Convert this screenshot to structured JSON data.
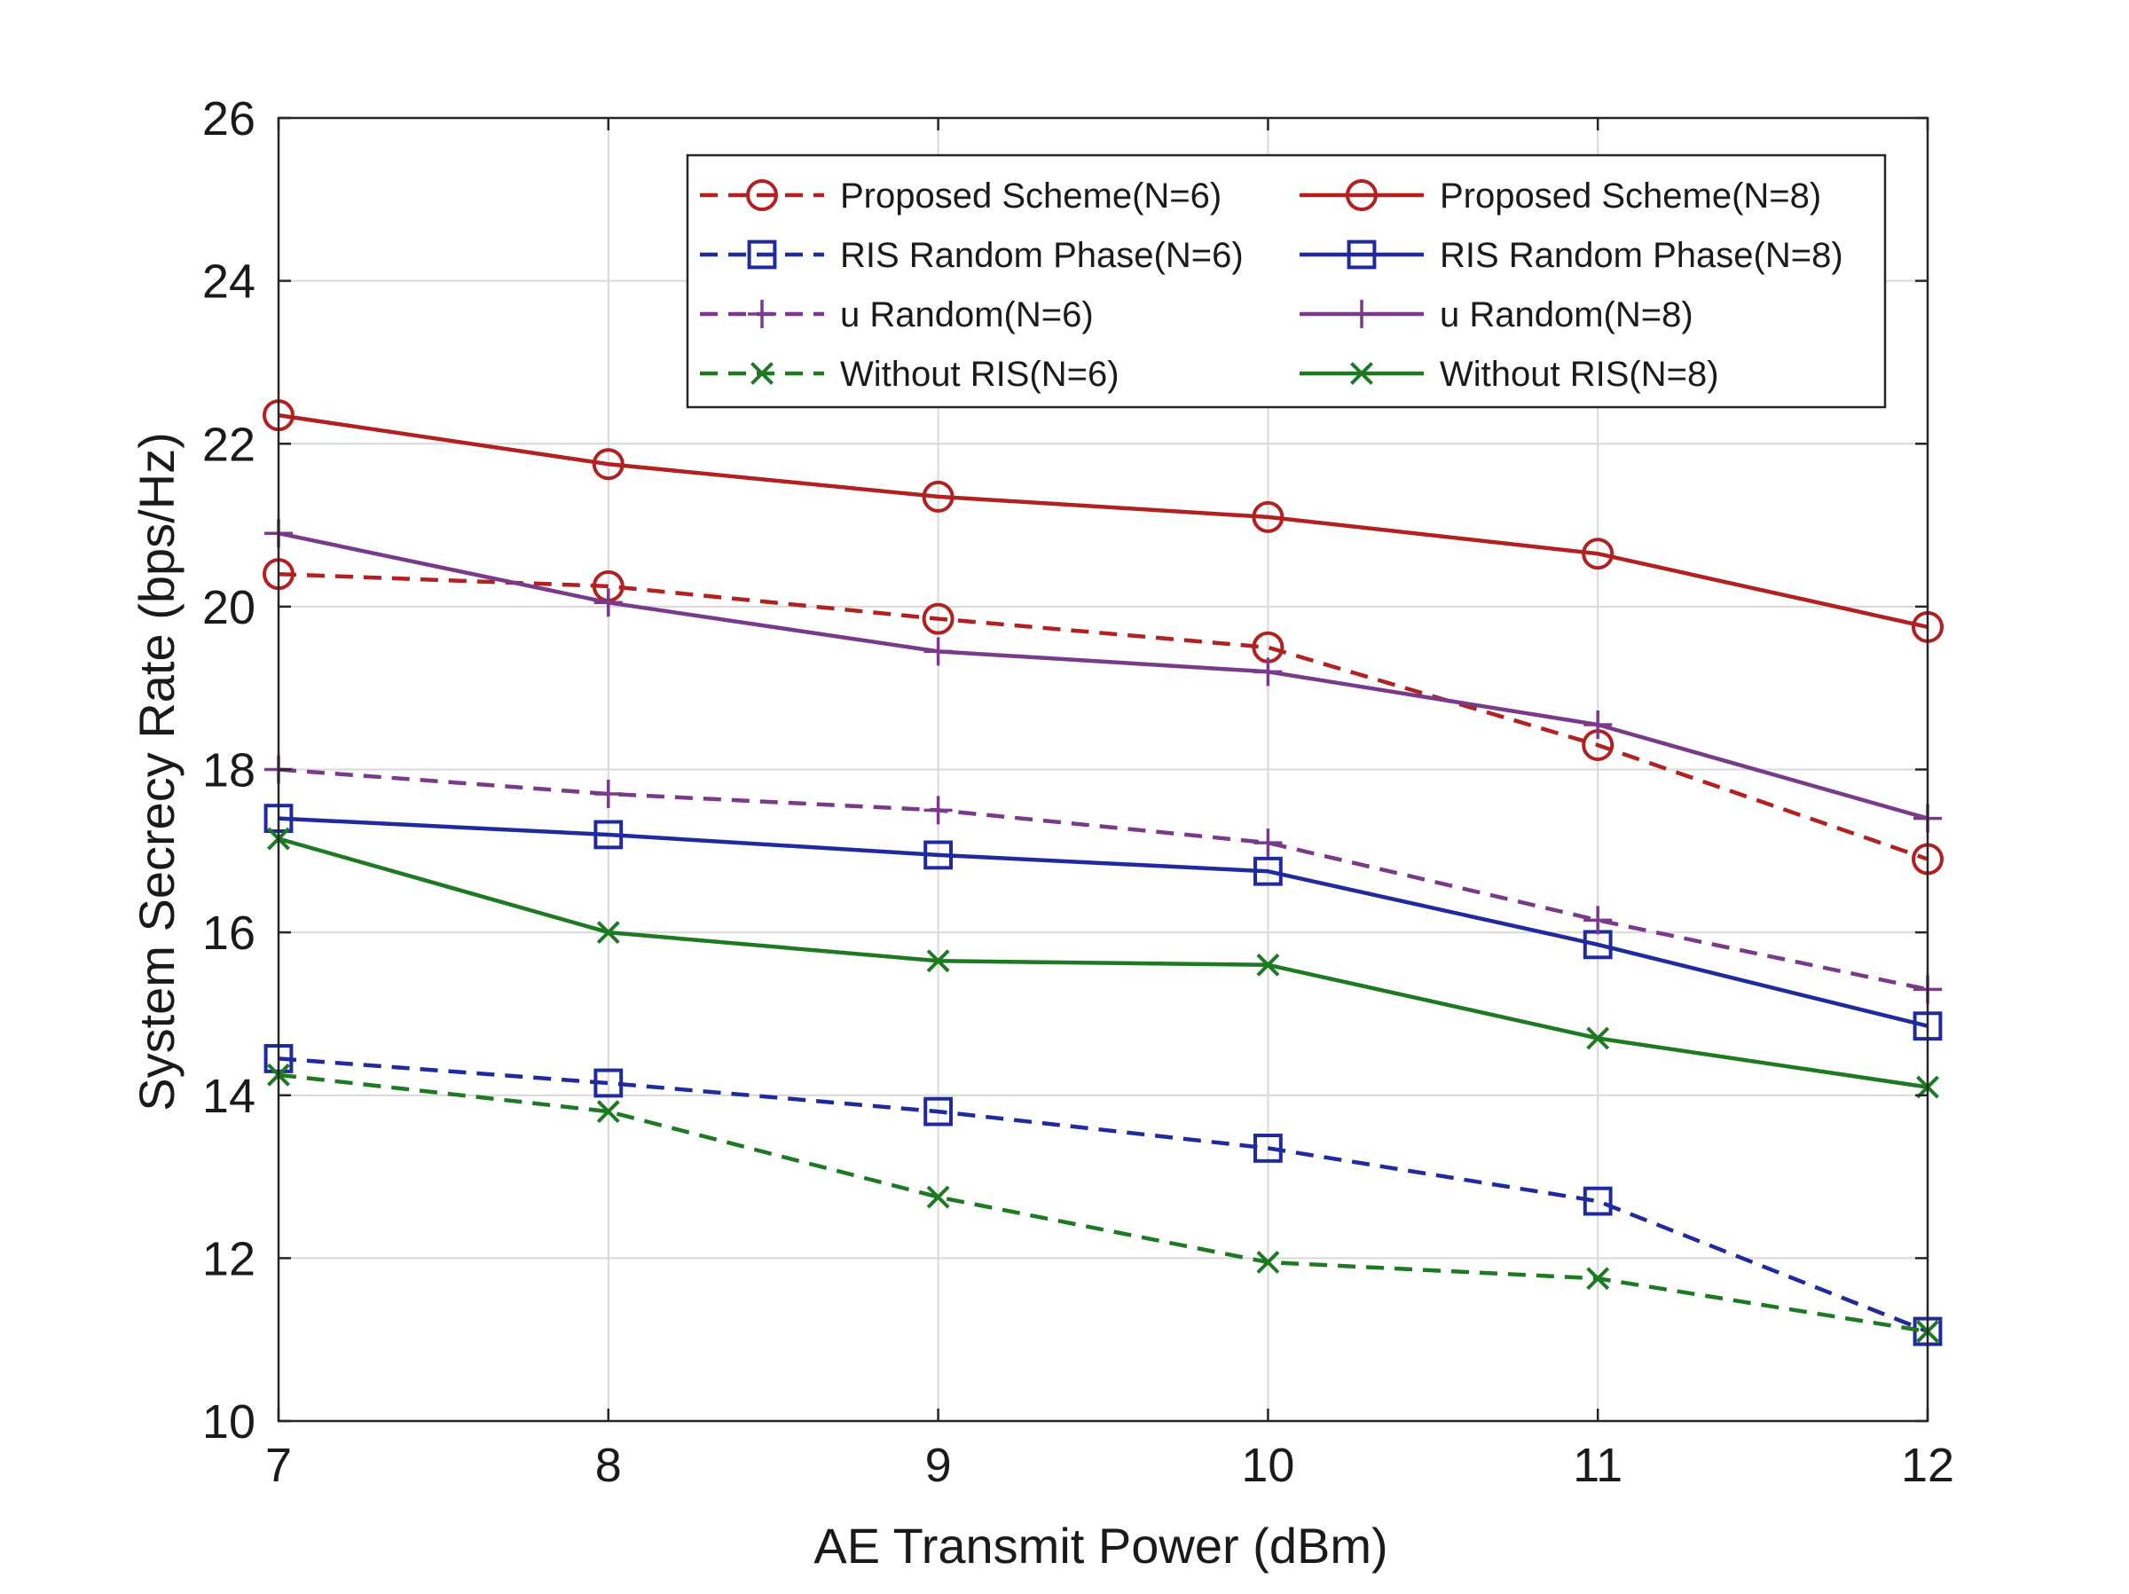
{
  "chart_data": {
    "type": "line",
    "title": "",
    "xlabel": "AE Transmit Power (dBm)",
    "ylabel": "System Secrecy Rate (bps/Hz)",
    "xlim": [
      7,
      12
    ],
    "ylim": [
      10,
      26
    ],
    "x": [
      7,
      8,
      9,
      10,
      11,
      12
    ],
    "xticks": [
      "7",
      "8",
      "9",
      "10",
      "11",
      "12"
    ],
    "yticks": [
      "10",
      "12",
      "14",
      "16",
      "18",
      "20",
      "22",
      "24",
      "26"
    ],
    "grid": true,
    "legend_position": "top-right",
    "series": [
      {
        "name": "Proposed Scheme(N=6)",
        "values": [
          20.4,
          20.25,
          19.85,
          19.5,
          18.3,
          16.9
        ],
        "color": "#b22020",
        "dash": true,
        "marker": "circle"
      },
      {
        "name": "Proposed Scheme(N=8)",
        "values": [
          22.35,
          21.75,
          21.35,
          21.1,
          20.65,
          19.75
        ],
        "color": "#b22020",
        "dash": false,
        "marker": "circle"
      },
      {
        "name": "RIS Random Phase(N=6)",
        "values": [
          14.45,
          14.15,
          13.8,
          13.35,
          12.7,
          11.1
        ],
        "color": "#1f2a9e",
        "dash": true,
        "marker": "square"
      },
      {
        "name": "RIS Random Phase(N=8)",
        "values": [
          17.4,
          17.2,
          16.95,
          16.75,
          15.85,
          14.85
        ],
        "color": "#1f2a9e",
        "dash": false,
        "marker": "square"
      },
      {
        "name": "u Random(N=6)",
        "values": [
          18.0,
          17.7,
          17.5,
          17.1,
          16.15,
          15.3
        ],
        "color": "#7a3a8a",
        "dash": true,
        "marker": "plus"
      },
      {
        "name": "u Random(N=8)",
        "values": [
          20.9,
          20.05,
          19.45,
          19.2,
          18.55,
          17.4
        ],
        "color": "#7a3a8a",
        "dash": false,
        "marker": "plus"
      },
      {
        "name": "Without RIS(N=6)",
        "values": [
          14.25,
          13.8,
          12.75,
          11.95,
          11.75,
          11.1
        ],
        "color": "#1e7a22",
        "dash": true,
        "marker": "x"
      },
      {
        "name": "Without RIS(N=8)",
        "values": [
          17.15,
          16.0,
          15.65,
          15.6,
          14.7,
          14.1
        ],
        "color": "#1e7a22",
        "dash": false,
        "marker": "x"
      }
    ]
  }
}
